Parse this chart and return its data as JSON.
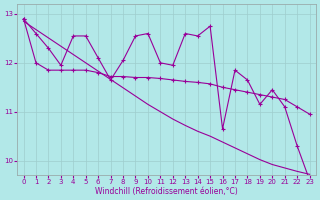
{
  "title": "",
  "xlabel": "Windchill (Refroidissement éolien,°C)",
  "ylabel": "",
  "bg_color": "#b2e8e8",
  "grid_color": "#9ecece",
  "line_color": "#990099",
  "xlim": [
    -0.5,
    23.5
  ],
  "ylim": [
    9.7,
    13.2
  ],
  "yticks": [
    10,
    11,
    12,
    13
  ],
  "xticks": [
    0,
    1,
    2,
    3,
    4,
    5,
    6,
    7,
    8,
    9,
    10,
    11,
    12,
    13,
    14,
    15,
    16,
    17,
    18,
    19,
    20,
    21,
    22,
    23
  ],
  "zigzag": [
    12.9,
    12.6,
    12.3,
    11.95,
    12.55,
    12.55,
    12.1,
    11.65,
    12.05,
    12.55,
    12.6,
    12.0,
    11.95,
    12.6,
    12.55,
    12.75,
    10.65,
    11.85,
    11.65,
    11.15,
    11.45,
    11.1,
    10.3,
    9.6
  ],
  "smooth": [
    12.9,
    12.0,
    11.85,
    11.85,
    11.85,
    11.85,
    11.8,
    11.72,
    11.72,
    11.7,
    11.7,
    11.68,
    11.65,
    11.62,
    11.6,
    11.57,
    11.5,
    11.45,
    11.4,
    11.35,
    11.3,
    11.25,
    11.1,
    10.95
  ],
  "trend": [
    12.85,
    12.68,
    12.51,
    12.34,
    12.17,
    12.0,
    11.83,
    11.66,
    11.49,
    11.32,
    11.15,
    11.0,
    10.85,
    10.72,
    10.6,
    10.5,
    10.38,
    10.26,
    10.14,
    10.02,
    9.92,
    9.85,
    9.78,
    9.72
  ]
}
